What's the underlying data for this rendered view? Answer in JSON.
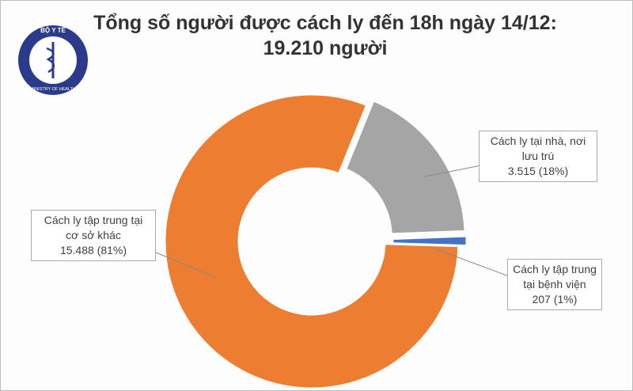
{
  "logo": {
    "top_text": "BỘ Y TẾ",
    "bottom_text": "MINISTRY OF HEALTH"
  },
  "chart_data": {
    "type": "donut",
    "title": "Tổng số người được cách ly đến 18h ngày 14/12:",
    "subtitle": "19.210 người",
    "categories": [
      "Cách ly tại nhà, nơi lưu trú",
      "Cách ly tập trung tại bệnh viện",
      "Cách ly tập trung tại cơ sở khác"
    ],
    "values": [
      3515,
      207,
      15488
    ],
    "value_labels": [
      "3.515 (18%)",
      "207 (1%)",
      "15.488 (81%)"
    ],
    "colors": [
      "#a5a5a5",
      "#4472c4",
      "#ed7d31"
    ]
  }
}
